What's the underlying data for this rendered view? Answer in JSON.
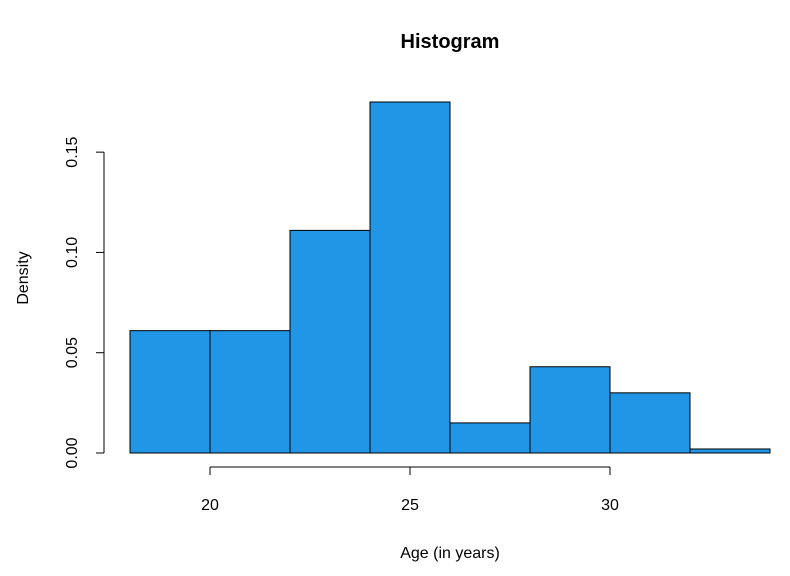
{
  "chart_data": {
    "type": "bar",
    "title": "Histogram",
    "xlabel": "Age (in years)",
    "ylabel": "Density",
    "bin_edges": [
      18,
      20,
      22,
      24,
      26,
      28,
      30,
      32,
      34
    ],
    "values": [
      0.061,
      0.061,
      0.111,
      0.175,
      0.015,
      0.043,
      0.03,
      0.002
    ],
    "xlim": [
      18,
      34
    ],
    "ylim": [
      0,
      0.175
    ],
    "x_ticks": [
      20,
      25,
      30
    ],
    "x_tick_labels": [
      "20",
      "25",
      "30"
    ],
    "y_ticks": [
      0,
      0.05,
      0.1,
      0.15
    ],
    "y_tick_labels": [
      "0.00",
      "0.05",
      "0.10",
      "0.15"
    ],
    "bar_color": "#2196e6",
    "grid": false
  }
}
